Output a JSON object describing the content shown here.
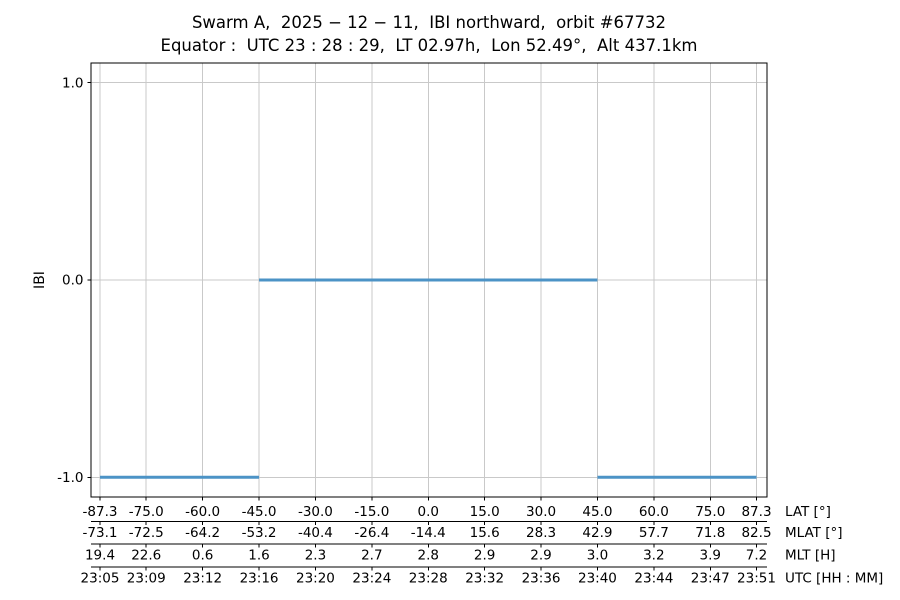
{
  "page": {
    "background": "#ffffff"
  },
  "chart_data": {
    "type": "line",
    "step": true,
    "title": "Swarm A,  2025 − 12 − 11,  IBI northward,  orbit #67732",
    "subtitle": "Equator :  UTC 23 : 28 : 29,  LT 02.97h,  Lon 52.49°,  Alt 437.1km",
    "ylabel": "IBI",
    "ylim": [
      -1.1,
      1.1
    ],
    "grid": true,
    "legend": "none",
    "yticks": [
      {
        "value": 1.0,
        "label": "1.0"
      },
      {
        "value": 0.0,
        "label": "0.0"
      },
      {
        "value": -1.0,
        "label": "-1.0"
      }
    ],
    "series": [
      {
        "name": "IBI",
        "color": "#4c93c6",
        "line_width": 3,
        "segments": [
          {
            "y": -1.0,
            "lat_start": -87.3,
            "lat_end": -45.0
          },
          {
            "y": 0.0,
            "lat_start": -45.0,
            "lat_end": 45.0
          },
          {
            "y": -1.0,
            "lat_start": 45.0,
            "lat_end": 87.3
          }
        ]
      }
    ],
    "x_axis_rows": [
      {
        "label": "LAT [°]",
        "tick_values": [
          -87.3,
          -75.0,
          -60.0,
          -45.0,
          -30.0,
          -15.0,
          0.0,
          15.0,
          30.0,
          45.0,
          60.0,
          75.0,
          87.3
        ],
        "tick_labels": [
          "-87.3",
          "-75.0",
          "-60.0",
          "-45.0",
          "-30.0",
          "-15.0",
          "0.0",
          "15.0",
          "30.0",
          "45.0",
          "60.0",
          "75.0",
          "87.3"
        ]
      },
      {
        "label": "MLAT [°]",
        "tick_labels": [
          "-73.1",
          "-72.5",
          "-64.2",
          "-53.2",
          "-40.4",
          "-26.4",
          "-14.4",
          "15.6",
          "28.3",
          "42.9",
          "57.7",
          "71.8",
          "82.5"
        ]
      },
      {
        "label": "MLT [H]",
        "tick_labels": [
          "19.4",
          "22.6",
          "0.6",
          "1.6",
          "2.3",
          "2.7",
          "2.8",
          "2.9",
          "2.9",
          "3.0",
          "3.2",
          "3.9",
          "7.2"
        ]
      },
      {
        "label": "UTC [HH : MM]",
        "tick_labels": [
          "23:05",
          "23:09",
          "23:12",
          "23:16",
          "23:20",
          "23:24",
          "23:28",
          "23:32",
          "23:36",
          "23:40",
          "23:44",
          "23:47",
          "23:51"
        ]
      }
    ],
    "colors": {
      "line": "#4c93c6",
      "grid": "#c9c9c9",
      "axis": "#000000",
      "text": "#000000"
    }
  }
}
